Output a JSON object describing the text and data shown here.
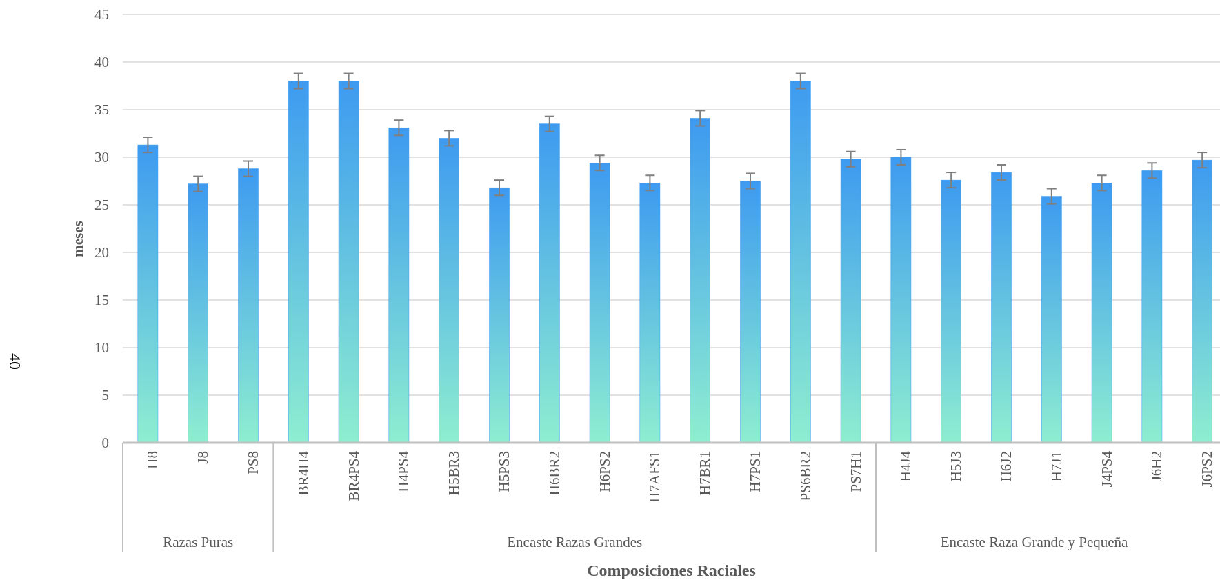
{
  "chart_data": {
    "type": "bar",
    "xlabel": "Composiciones Raciales",
    "ylabel": "meses",
    "categories": [
      "H8",
      "J8",
      "PS8",
      "BR4H4",
      "BR4PS4",
      "H4PS4",
      "H5BR3",
      "H5PS3",
      "H6BR2",
      "H6PS2",
      "H7AFS1",
      "H7BR1",
      "H7PS1",
      "PS6BR2",
      "PS7H1",
      "H4J4",
      "H5J3",
      "H6J2",
      "H7J1",
      "J4PS4",
      "J6H2",
      "J6PS2"
    ],
    "series": [
      {
        "color": "#3d9af0",
        "values": [
          31.3,
          27.2,
          28.8,
          38.0,
          38.0,
          33.1,
          32.0,
          26.8,
          33.5,
          29.4,
          27.3,
          34.1,
          27.5,
          38.0,
          29.8,
          30.0,
          27.6,
          28.4,
          25.9,
          27.3,
          28.6,
          29.7
        ],
        "errors": [
          0.8,
          0.8,
          0.8,
          0.8,
          0.8,
          0.8,
          0.8,
          0.8,
          0.8,
          0.8,
          0.8,
          0.8,
          0.8,
          0.8,
          0.8,
          0.8,
          0.8,
          0.8,
          0.8,
          0.8,
          0.8,
          0.8
        ]
      }
    ],
    "ylim": [
      0,
      45
    ],
    "yticks": [
      0,
      5,
      10,
      15,
      20,
      25,
      30,
      35,
      40,
      45
    ],
    "grid": "y",
    "annotations": [
      "Razas Puras",
      "Encaste Razas Grandes",
      "Encaste Raza Grande y Pequeña",
      "40"
    ]
  }
}
